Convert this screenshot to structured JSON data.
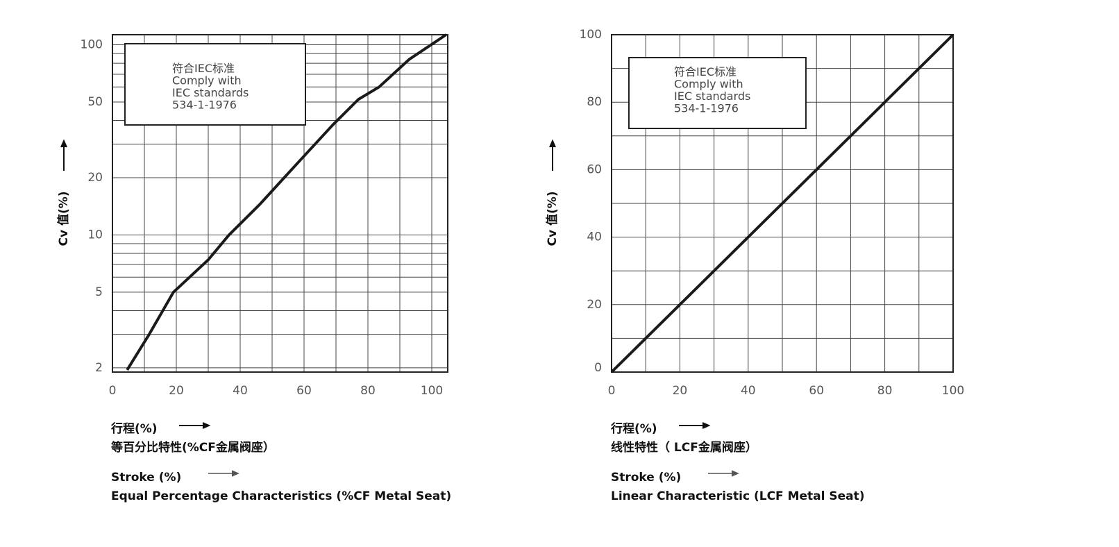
{
  "chart_data": [
    {
      "type": "line",
      "log_y": true,
      "ylabel": "Cv 值(%)",
      "xlabel": "行程(%)",
      "caption": "等百分比特性(%CF金属阀座）",
      "xlabel_en": "Stroke (%)",
      "caption_en": "Equal Percentage Characteristics (%CF Metal Seat)",
      "annotation": [
        "符合IEC标准",
        "Comply with",
        "IEC standards",
        "534-1-1976"
      ],
      "xlim": [
        0,
        105
      ],
      "ylim": [
        1.9,
        113
      ],
      "xticks": [
        0,
        20,
        40,
        60,
        80,
        100
      ],
      "yticks": [
        2,
        5,
        10,
        20,
        50,
        100
      ],
      "grid": true,
      "grid_x": [
        10,
        20,
        30,
        40,
        50,
        60,
        70,
        80,
        90,
        100
      ],
      "grid_y": [
        2,
        3,
        4,
        5,
        6,
        7,
        8,
        9,
        10,
        20,
        30,
        40,
        50,
        60,
        70,
        80,
        90,
        100
      ],
      "series": [
        {
          "color": "#1a1a1a",
          "x": [
            4.6,
            11.5,
            19.1,
            30,
            36.5,
            46,
            58,
            69,
            77,
            83.5,
            93,
            104.5
          ],
          "values": [
            1.95,
            3,
            5,
            7.4,
            10,
            14.4,
            23.9,
            37.9,
            51.6,
            60,
            84,
            113
          ]
        }
      ]
    },
    {
      "type": "line",
      "log_y": false,
      "ylabel": "Cv 值(%)",
      "xlabel": "行程(%)",
      "caption": "线性特性（ LCF金属阀座）",
      "xlabel_en": "Stroke (%)",
      "caption_en": "Linear Characteristic  (LCF Metal Seat)",
      "annotation": [
        "符合IEC标准",
        "Comply with",
        "IEC standards",
        "534-1-1976"
      ],
      "xlim": [
        0,
        100
      ],
      "ylim": [
        0,
        100
      ],
      "xticks": [
        0,
        20,
        40,
        60,
        80,
        100
      ],
      "yticks": [
        0,
        20,
        40,
        60,
        80,
        100
      ],
      "grid": true,
      "grid_x": [
        10,
        20,
        30,
        40,
        50,
        60,
        70,
        80,
        90
      ],
      "grid_y": [
        10,
        20,
        30,
        40,
        50,
        60,
        70,
        80,
        90
      ],
      "series": [
        {
          "color": "#1a1a1a",
          "x": [
            0,
            100
          ],
          "values": [
            0,
            100
          ]
        }
      ]
    }
  ]
}
